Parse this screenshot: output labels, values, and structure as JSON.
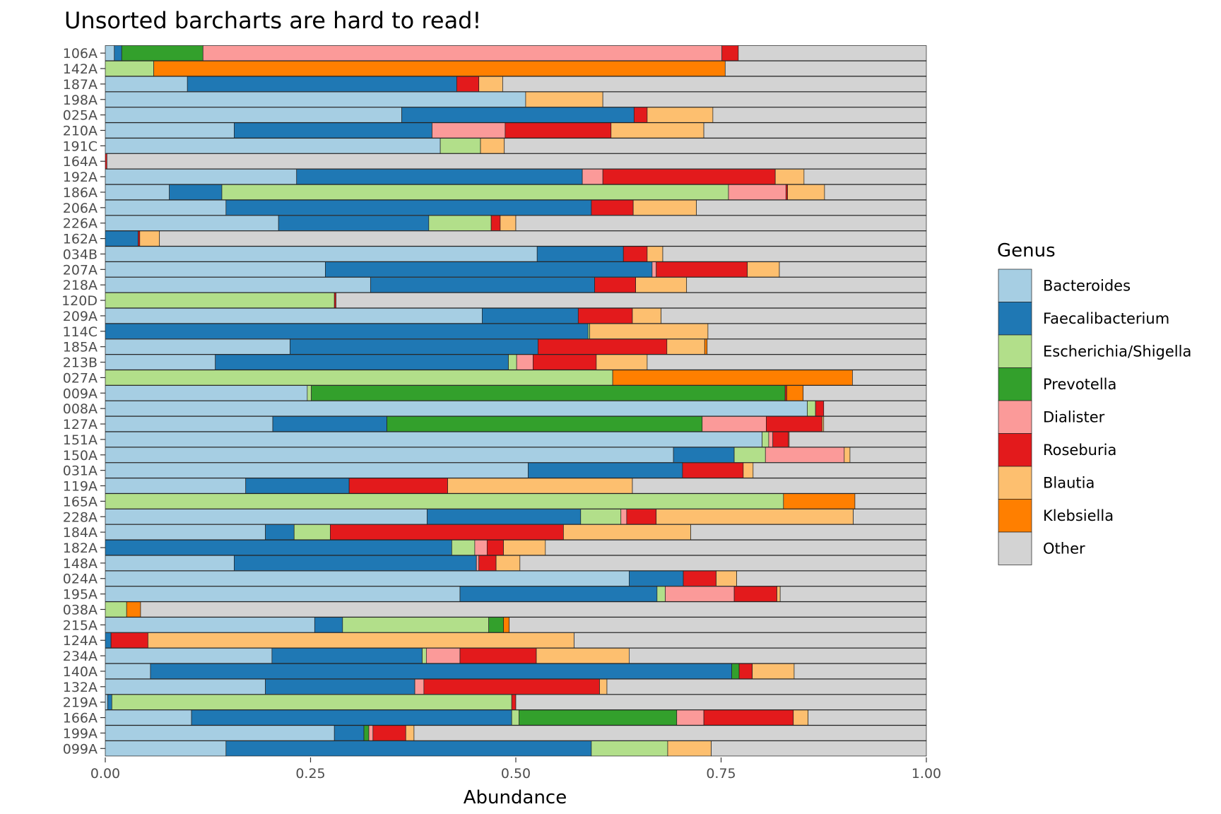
{
  "chart_data": {
    "type": "bar",
    "orientation": "horizontal",
    "stacked": true,
    "title": "Unsorted barcharts are hard to read!",
    "xlabel": "Abundance",
    "ylabel": "",
    "xlim": [
      0,
      1
    ],
    "xticks": [
      "0.00",
      "0.25",
      "0.50",
      "0.75",
      "1.00"
    ],
    "grid": false,
    "legend": {
      "title": "Genus",
      "position": "right"
    },
    "categories": [
      "106A",
      "142A",
      "187A",
      "198A",
      "025A",
      "210A",
      "191C",
      "164A",
      "192A",
      "186A",
      "206A",
      "226A",
      "162A",
      "034B",
      "207A",
      "218A",
      "120D",
      "209A",
      "114C",
      "185A",
      "213B",
      "027A",
      "009A",
      "008A",
      "127A",
      "151A",
      "150A",
      "031A",
      "119A",
      "165A",
      "228A",
      "184A",
      "182A",
      "148A",
      "024A",
      "195A",
      "038A",
      "215A",
      "124A",
      "234A",
      "140A",
      "132A",
      "219A",
      "166A",
      "199A",
      "099A"
    ],
    "series": [
      {
        "name": "Bacteroides",
        "color": "#A6CEE3",
        "values": [
          0.011,
          0,
          0.1,
          0.512,
          0.361,
          0.157,
          0.408,
          0,
          0.233,
          0.078,
          0.147,
          0.211,
          0,
          0.526,
          0.268,
          0.323,
          0,
          0.459,
          0,
          0.225,
          0.134,
          0,
          0.246,
          0.855,
          0.204,
          0.8,
          0.692,
          0.515,
          0.171,
          0,
          0.392,
          0.195,
          0,
          0.157,
          0.638,
          0.432,
          0,
          0.255,
          0,
          0.203,
          0.055,
          0.195,
          0.003,
          0.105,
          0.279,
          0.147
        ]
      },
      {
        "name": "Faecalibacterium",
        "color": "#1F78B4",
        "values": [
          0.009,
          0,
          0.328,
          0,
          0.283,
          0.241,
          0,
          0,
          0.348,
          0.064,
          0.445,
          0.183,
          0.04,
          0.105,
          0.398,
          0.273,
          0,
          0.117,
          0.588,
          0.302,
          0.357,
          0,
          0,
          0,
          0.139,
          0,
          0.074,
          0.188,
          0.126,
          0,
          0.187,
          0.035,
          0.422,
          0.295,
          0.066,
          0.24,
          0,
          0.034,
          0.007,
          0.183,
          0.708,
          0.182,
          0.005,
          0.39,
          0.036,
          0.445
        ]
      },
      {
        "name": "Escherichia/Shigella",
        "color": "#B2DF8A",
        "values": [
          0,
          0.059,
          0,
          0,
          0,
          0,
          0.049,
          0,
          0,
          0.617,
          0,
          0.076,
          0,
          0,
          0,
          0,
          0.279,
          0,
          0.002,
          0,
          0.01,
          0.618,
          0.005,
          0.01,
          0,
          0.008,
          0.038,
          0,
          0,
          0.826,
          0.049,
          0.044,
          0.028,
          0,
          0,
          0.01,
          0.026,
          0.178,
          0,
          0.005,
          0,
          0,
          0.487,
          0.009,
          0,
          0.093
        ]
      },
      {
        "name": "Prevotella",
        "color": "#33A02C",
        "values": [
          0.099,
          0,
          0,
          0,
          0,
          0,
          0,
          0,
          0,
          0,
          0,
          0,
          0,
          0,
          0,
          0,
          0,
          0,
          0,
          0,
          0,
          0,
          0.577,
          0,
          0.384,
          0,
          0,
          0,
          0,
          0,
          0,
          0,
          0,
          0,
          0,
          0,
          0,
          0.018,
          0,
          0,
          0.009,
          0,
          0,
          0.192,
          0.006,
          0
        ]
      },
      {
        "name": "Dialister",
        "color": "#FB9A99",
        "values": [
          0.632,
          0,
          0,
          0,
          0,
          0.089,
          0,
          0,
          0.025,
          0.07,
          0,
          0,
          0,
          0,
          0.005,
          0,
          0,
          0,
          0,
          0,
          0.02,
          0,
          0,
          0,
          0.078,
          0.005,
          0.096,
          0,
          0,
          0,
          0.007,
          0,
          0.015,
          0.003,
          0,
          0.084,
          0,
          0,
          0,
          0.041,
          0,
          0.011,
          0,
          0.033,
          0.005,
          0
        ]
      },
      {
        "name": "Roseburia",
        "color": "#E31A1C",
        "values": [
          0.02,
          0,
          0.027,
          0,
          0.016,
          0.129,
          0,
          0.002,
          0.21,
          0.002,
          0.051,
          0.011,
          0.002,
          0.029,
          0.111,
          0.05,
          0.002,
          0.066,
          0,
          0.157,
          0.077,
          0,
          0.002,
          0.01,
          0.068,
          0.019,
          0,
          0.074,
          0.12,
          0,
          0.036,
          0.284,
          0.02,
          0.021,
          0.04,
          0.052,
          0,
          0,
          0.045,
          0.093,
          0.016,
          0.214,
          0.005,
          0.109,
          0.04,
          0
        ]
      },
      {
        "name": "Blautia",
        "color": "#FDBF6F",
        "values": [
          0,
          0,
          0.029,
          0.094,
          0.08,
          0.113,
          0.029,
          0,
          0.035,
          0.045,
          0.077,
          0.019,
          0.024,
          0.019,
          0.039,
          0.062,
          0,
          0.035,
          0.144,
          0.046,
          0.062,
          0,
          0,
          0,
          0.002,
          0.001,
          0.007,
          0.012,
          0.225,
          0,
          0.24,
          0.155,
          0.051,
          0.029,
          0.025,
          0.004,
          0,
          0,
          0.519,
          0.113,
          0.051,
          0.009,
          0,
          0.018,
          0.01,
          0.053
        ]
      },
      {
        "name": "Klebsiella",
        "color": "#FF7F00",
        "values": [
          0,
          0.696,
          0,
          0,
          0,
          0,
          0,
          0,
          0,
          0,
          0,
          0,
          0,
          0,
          0,
          0,
          0,
          0,
          0,
          0.003,
          0,
          0.292,
          0.02,
          0,
          0,
          0,
          0,
          0,
          0,
          0.087,
          0,
          0,
          0,
          0,
          0,
          0,
          0.017,
          0.007,
          0,
          0,
          0,
          0,
          0,
          0,
          0,
          0
        ]
      },
      {
        "name": "Other",
        "color": "#D3D3D3",
        "values": [
          0.229,
          0.245,
          0.516,
          0.394,
          0.26,
          0.271,
          0.514,
          0.998,
          0.149,
          0.124,
          0.28,
          0.5,
          0.934,
          0.321,
          0.179,
          0.292,
          0.719,
          0.323,
          0.266,
          0.267,
          0.34,
          0.09,
          0.15,
          0.125,
          0.125,
          0.167,
          0.093,
          0.211,
          0.358,
          0.087,
          0.089,
          0.287,
          0.464,
          0.495,
          0.231,
          0.178,
          0.957,
          0.508,
          0.429,
          0.362,
          0.161,
          0.389,
          0.5,
          0.144,
          0.624,
          0.262
        ]
      }
    ]
  }
}
